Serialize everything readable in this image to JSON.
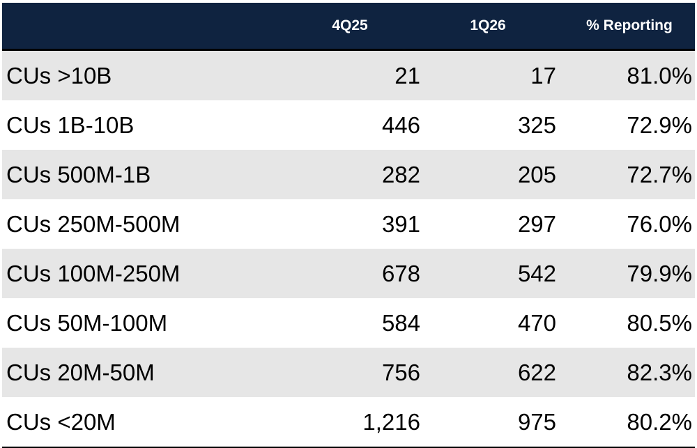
{
  "chart_data": {
    "type": "table",
    "columns": [
      "",
      "4Q25",
      "1Q26",
      "% Reporting"
    ],
    "rows": [
      [
        "CUs >10B",
        "21",
        "17",
        "81.0%"
      ],
      [
        "CUs 1B-10B",
        "446",
        "325",
        "72.9%"
      ],
      [
        "CUs 500M-1B",
        "282",
        "205",
        "72.7%"
      ],
      [
        "CUs 250M-500M",
        "391",
        "297",
        "76.0%"
      ],
      [
        "CUs 100M-250M",
        "678",
        "542",
        "79.9%"
      ],
      [
        "CUs 50M-100M",
        "584",
        "470",
        "80.5%"
      ],
      [
        "CUs 20M-50M",
        "756",
        "622",
        "82.3%"
      ],
      [
        "CUs <20M",
        "1,216",
        "975",
        "80.2%"
      ]
    ],
    "colors": {
      "header_bg": "#0f2340",
      "header_text": "#ffffff",
      "row_shaded": "#e6e6e6",
      "row_white": "#ffffff"
    }
  }
}
